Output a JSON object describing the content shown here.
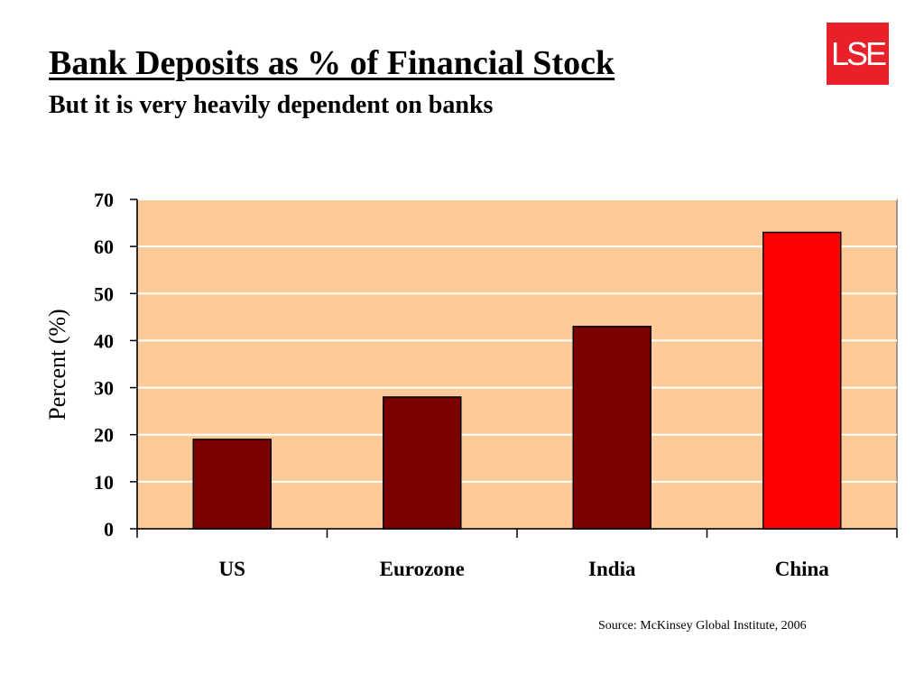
{
  "slide": {
    "title": "Bank Deposits as % of Financial Stock",
    "subtitle": "But it is very heavily dependent on banks",
    "logo_text": "LSE",
    "source": "Source: McKinsey Global Institute, 2006"
  },
  "colors": {
    "plot_background": "#fccb99",
    "bar_default": "#7a0000",
    "bar_highlight": "#ff0000",
    "logo": "#e8202a",
    "gridline": "#ffffff"
  },
  "chart_data": {
    "type": "bar",
    "categories": [
      "US",
      "Eurozone",
      "India",
      "China"
    ],
    "values": [
      19,
      28,
      43,
      63
    ],
    "highlight": [
      "China"
    ],
    "xlabel": "",
    "ylabel": "Percent (%)",
    "ylim": [
      0,
      70
    ],
    "yticks": [
      "0",
      "10",
      "20",
      "30",
      "40",
      "50",
      "60",
      "70"
    ],
    "grid": true,
    "legend": "none"
  }
}
